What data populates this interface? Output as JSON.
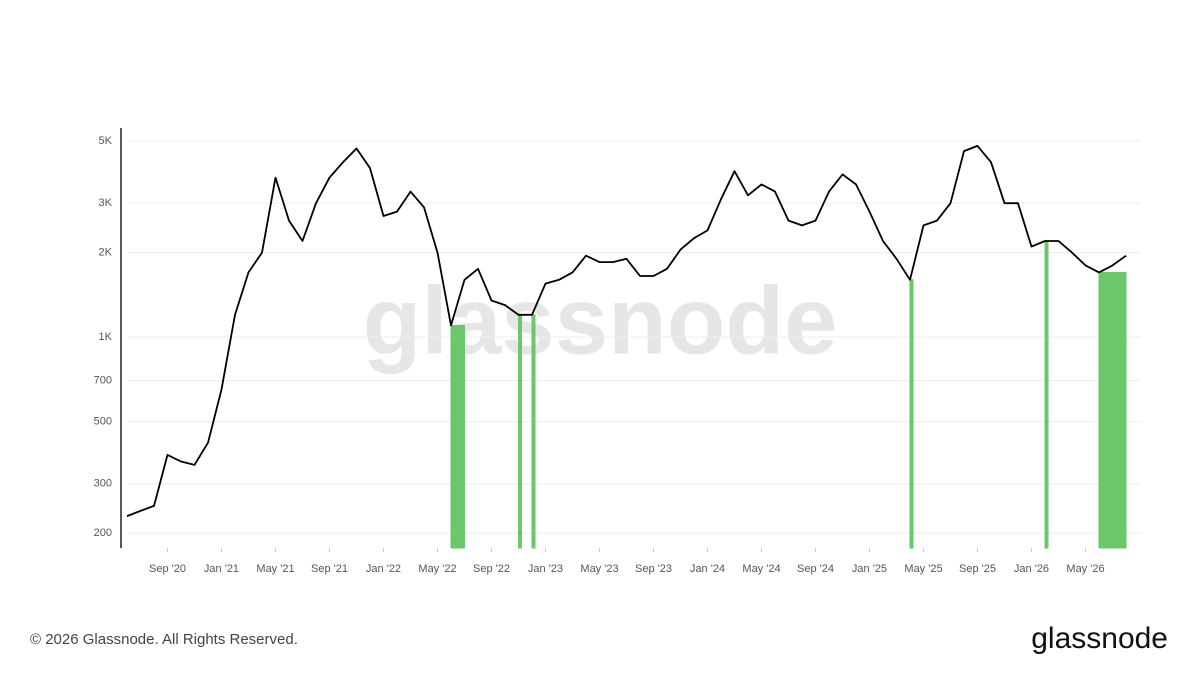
{
  "chart_data": {
    "type": "line",
    "y_scale": "log",
    "watermark": "glassnode",
    "footer": "© 2026 Glassnode. All Rights Reserved.",
    "brand": "glassnode",
    "xlim": [
      "2020-06",
      "2026-08"
    ],
    "xticks": [
      {
        "value": "2020-09",
        "label": "Sep '20"
      },
      {
        "value": "2021-01",
        "label": "Jan '21"
      },
      {
        "value": "2021-05",
        "label": "May '21"
      },
      {
        "value": "2021-09",
        "label": "Sep '21"
      },
      {
        "value": "2022-01",
        "label": "Jan '22"
      },
      {
        "value": "2022-05",
        "label": "May '22"
      },
      {
        "value": "2022-09",
        "label": "Sep '22"
      },
      {
        "value": "2023-01",
        "label": "Jan '23"
      },
      {
        "value": "2023-05",
        "label": "May '23"
      },
      {
        "value": "2023-09",
        "label": "Sep '23"
      },
      {
        "value": "2024-01",
        "label": "Jan '24"
      },
      {
        "value": "2024-05",
        "label": "May '24"
      },
      {
        "value": "2024-09",
        "label": "Sep '24"
      },
      {
        "value": "2025-01",
        "label": "Jan '25"
      },
      {
        "value": "2025-05",
        "label": "May '25"
      },
      {
        "value": "2025-09",
        "label": "Sep '25"
      },
      {
        "value": "2026-01",
        "label": "Jan '26"
      },
      {
        "value": "2026-05",
        "label": "May '26"
      }
    ],
    "ylim": [
      177,
      5560
    ],
    "yticks": [
      200,
      300,
      500,
      700,
      {
        "value": 1000,
        "label": "1K"
      },
      {
        "value": 2000,
        "label": "2K"
      },
      {
        "value": 3000,
        "label": "3K"
      },
      {
        "value": 5000,
        "label": "5K"
      }
    ],
    "grid": true,
    "x": [
      "2020-06",
      "2020-07",
      "2020-08",
      "2020-09",
      "2020-10",
      "2020-11",
      "2020-12",
      "2021-01",
      "2021-02",
      "2021-03",
      "2021-04",
      "2021-05",
      "2021-06",
      "2021-07",
      "2021-08",
      "2021-09",
      "2021-10",
      "2021-11",
      "2021-12",
      "2022-01",
      "2022-02",
      "2022-03",
      "2022-04",
      "2022-05",
      "2022-06",
      "2022-07",
      "2022-08",
      "2022-09",
      "2022-10",
      "2022-11",
      "2022-12",
      "2023-01",
      "2023-02",
      "2023-03",
      "2023-04",
      "2023-05",
      "2023-06",
      "2023-07",
      "2023-08",
      "2023-09",
      "2023-10",
      "2023-11",
      "2023-12",
      "2024-01",
      "2024-02",
      "2024-03",
      "2024-04",
      "2024-05",
      "2024-06",
      "2024-07",
      "2024-08",
      "2024-09",
      "2024-10",
      "2024-11",
      "2024-12",
      "2025-01",
      "2025-02",
      "2025-03",
      "2025-04",
      "2025-05",
      "2025-06",
      "2025-07",
      "2025-08",
      "2025-09",
      "2025-10",
      "2025-11",
      "2025-12",
      "2026-01",
      "2026-02",
      "2026-03",
      "2026-04",
      "2026-05",
      "2026-06",
      "2026-07",
      "2026-08"
    ],
    "series": [
      {
        "color": "#000000",
        "values": [
          230,
          240,
          250,
          380,
          360,
          350,
          420,
          650,
          1200,
          1700,
          2000,
          3700,
          2600,
          2200,
          3000,
          3700,
          4200,
          4700,
          4000,
          2700,
          2800,
          3300,
          2900,
          2000,
          1100,
          1600,
          1750,
          1350,
          1300,
          1200,
          1200,
          1550,
          1600,
          1700,
          1950,
          1850,
          1850,
          1900,
          1650,
          1650,
          1750,
          2050,
          2250,
          2400,
          3100,
          3900,
          3200,
          3500,
          3300,
          2600,
          2500,
          2600,
          3300,
          3800,
          3500,
          2800,
          2200,
          1900,
          1600,
          2500,
          2600,
          3000,
          4600,
          4800,
          4200,
          3000,
          3000,
          2100,
          2200,
          2200,
          2000,
          1800,
          1700,
          1800,
          1950
        ]
      }
    ],
    "shade_color": "#6cc76a",
    "shaded_ranges": [
      [
        "2022-06",
        "2022-07"
      ],
      [
        "2022-11",
        "2022-11"
      ],
      [
        "2022-12",
        "2022-12"
      ],
      [
        "2025-04",
        "2025-04"
      ],
      [
        "2026-02",
        "2026-02"
      ],
      [
        "2026-06",
        "2026-08"
      ]
    ]
  }
}
